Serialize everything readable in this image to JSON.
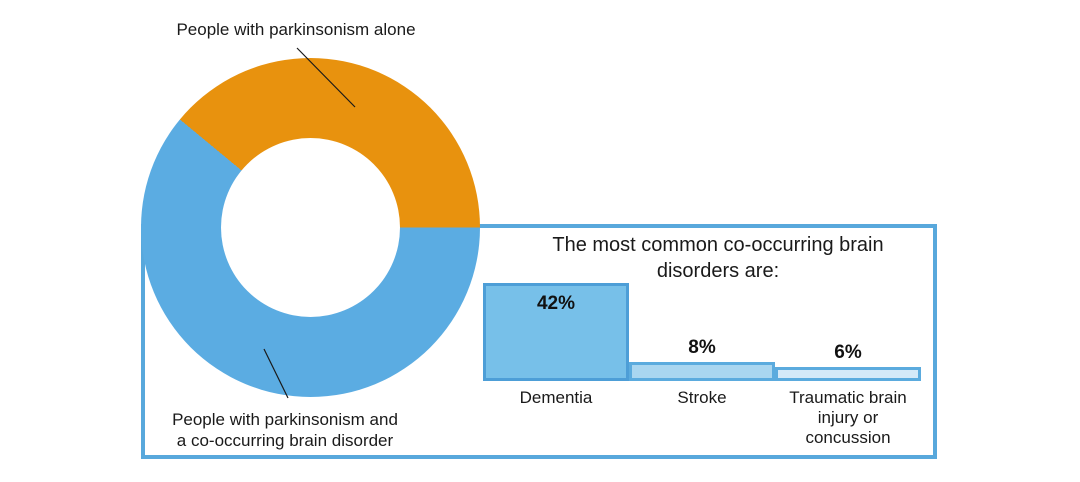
{
  "canvas": {
    "background": "#FFFFFF"
  },
  "chart_data": [
    {
      "type": "pie",
      "subtype": "donut",
      "slices": [
        {
          "label": "People with parkinsonism alone",
          "value": 39,
          "color": "#E8920E"
        },
        {
          "label": "People with parkinsonism and a co-occurring brain disorder",
          "value": 61,
          "color": "#5BACE2"
        }
      ],
      "hole_ratio": 0.53,
      "start_angle_deg_east": 0,
      "note": "slice values estimated from arc angles; no numeric labels shown for donut",
      "callouts": {
        "top_label": "People with parkinsonism alone",
        "bottom_label_line1": "People with parkinsonism and",
        "bottom_label_line2": "a co-occurring brain disorder"
      }
    },
    {
      "type": "bar",
      "title": "The most common co-occurring brain disorders are:",
      "title_line1": "The most common co-occurring brain",
      "title_line2": "disorders are:",
      "categories": [
        "Dementia",
        "Stroke",
        "Traumatic brain injury or concussion"
      ],
      "values": [
        42,
        8,
        6
      ],
      "value_labels": [
        "42%",
        "8%",
        "6%"
      ],
      "ylim": [
        0,
        42
      ],
      "grid": false,
      "legend": "none",
      "panel_border_color": "#58A8DC",
      "bars": [
        {
          "category": "Dementia",
          "value": 42,
          "value_label": "42%",
          "fill": "#77C0E9",
          "border": "#4D9ED7"
        },
        {
          "category": "Stroke",
          "value": 8,
          "value_label": "8%",
          "fill": "#A9D6F0",
          "border": "#5BABDE"
        },
        {
          "category": "Traumatic brain injury or concussion",
          "value": 6,
          "value_label": "6%",
          "fill": "#D4E9F8",
          "border": "#5BABDE"
        }
      ]
    }
  ]
}
